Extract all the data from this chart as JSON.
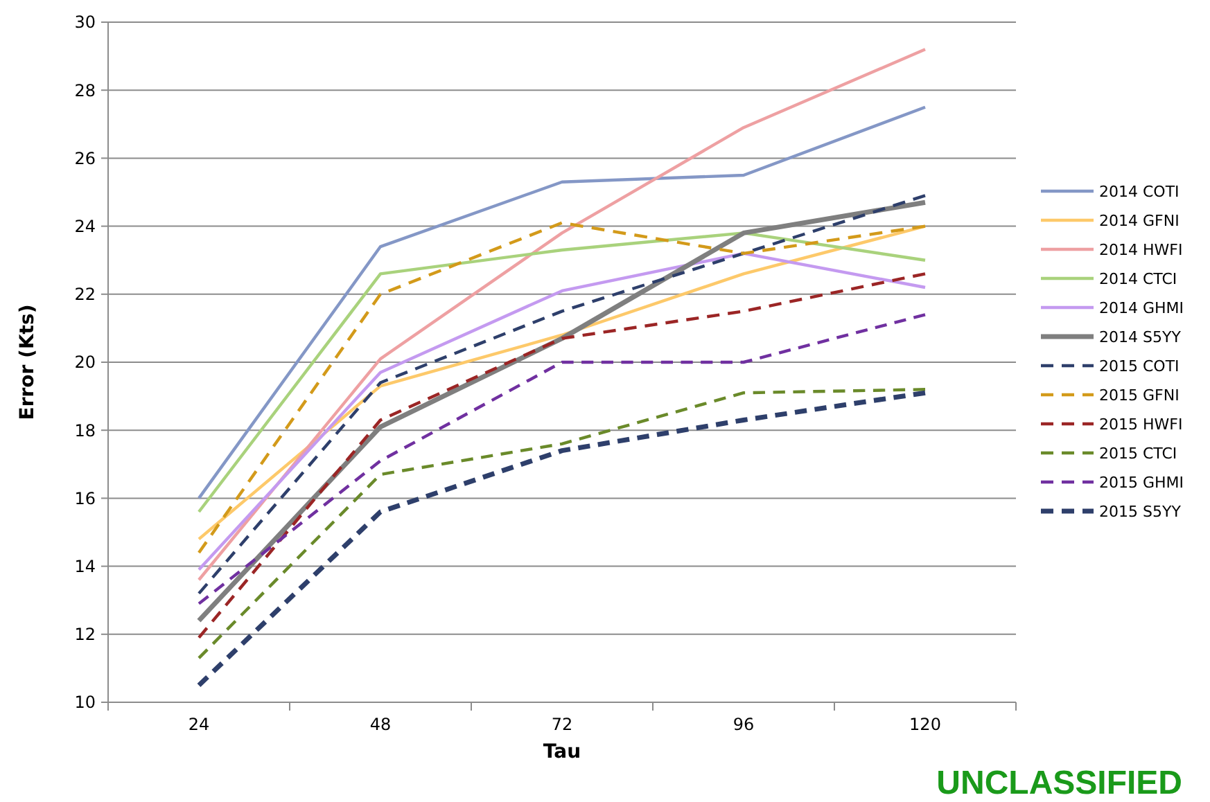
{
  "chart_data": {
    "type": "line",
    "xlabel": "Tau",
    "ylabel": "Error (Kts)",
    "categories": [
      "24",
      "48",
      "72",
      "96",
      "120"
    ],
    "ylim": [
      10,
      30
    ],
    "yticks": [
      10,
      12,
      14,
      16,
      18,
      20,
      22,
      24,
      26,
      28,
      30
    ],
    "grid": "y",
    "legend": "right",
    "annotations": [
      "UNCLASSIFIED"
    ],
    "series": [
      {
        "name": "2014 COTI",
        "color": "#8497c6",
        "line_style": "solid",
        "values": [
          16.0,
          23.4,
          25.3,
          25.5,
          27.5
        ]
      },
      {
        "name": "2014 GFNI",
        "color": "#fdc96a",
        "line_style": "solid",
        "values": [
          14.8,
          19.3,
          20.8,
          22.6,
          24.0
        ]
      },
      {
        "name": "2014 HWFI",
        "color": "#eea0a2",
        "line_style": "solid",
        "values": [
          13.6,
          20.1,
          23.8,
          26.9,
          29.2
        ]
      },
      {
        "name": "2014 CTCI",
        "color": "#a9d27c",
        "line_style": "solid",
        "values": [
          15.6,
          22.6,
          23.3,
          23.8,
          23.0
        ]
      },
      {
        "name": "2014 GHMI",
        "color": "#c49af0",
        "line_style": "solid",
        "values": [
          13.9,
          19.7,
          22.1,
          23.2,
          22.2
        ]
      },
      {
        "name": "2014 S5YY",
        "color": "#7f7f7f",
        "line_style": "solid",
        "values": [
          12.4,
          18.1,
          20.7,
          23.8,
          24.7
        ]
      },
      {
        "name": "2015 COTI",
        "color": "#2e3f6b",
        "line_style": "dashed",
        "values": [
          13.2,
          19.4,
          21.5,
          23.2,
          24.9
        ]
      },
      {
        "name": "2015 GFNI",
        "color": "#d39a1a",
        "line_style": "dashed",
        "values": [
          14.4,
          22.0,
          24.1,
          23.2,
          24.0
        ]
      },
      {
        "name": "2015 HWFI",
        "color": "#9b2525",
        "line_style": "dashed",
        "values": [
          11.9,
          18.3,
          20.7,
          21.5,
          22.6
        ]
      },
      {
        "name": "2015 CTCI",
        "color": "#6a8a2a",
        "line_style": "dashed",
        "values": [
          11.3,
          16.7,
          17.6,
          19.1,
          19.2
        ]
      },
      {
        "name": "2015 GHMI",
        "color": "#7030a0",
        "line_style": "dashed",
        "values": [
          12.9,
          17.1,
          20.0,
          20.0,
          21.4
        ]
      },
      {
        "name": "2015 S5YY",
        "color": "#2e3f6b",
        "line_style": "dashed",
        "values": [
          10.5,
          15.6,
          17.4,
          18.3,
          19.1
        ]
      }
    ]
  }
}
